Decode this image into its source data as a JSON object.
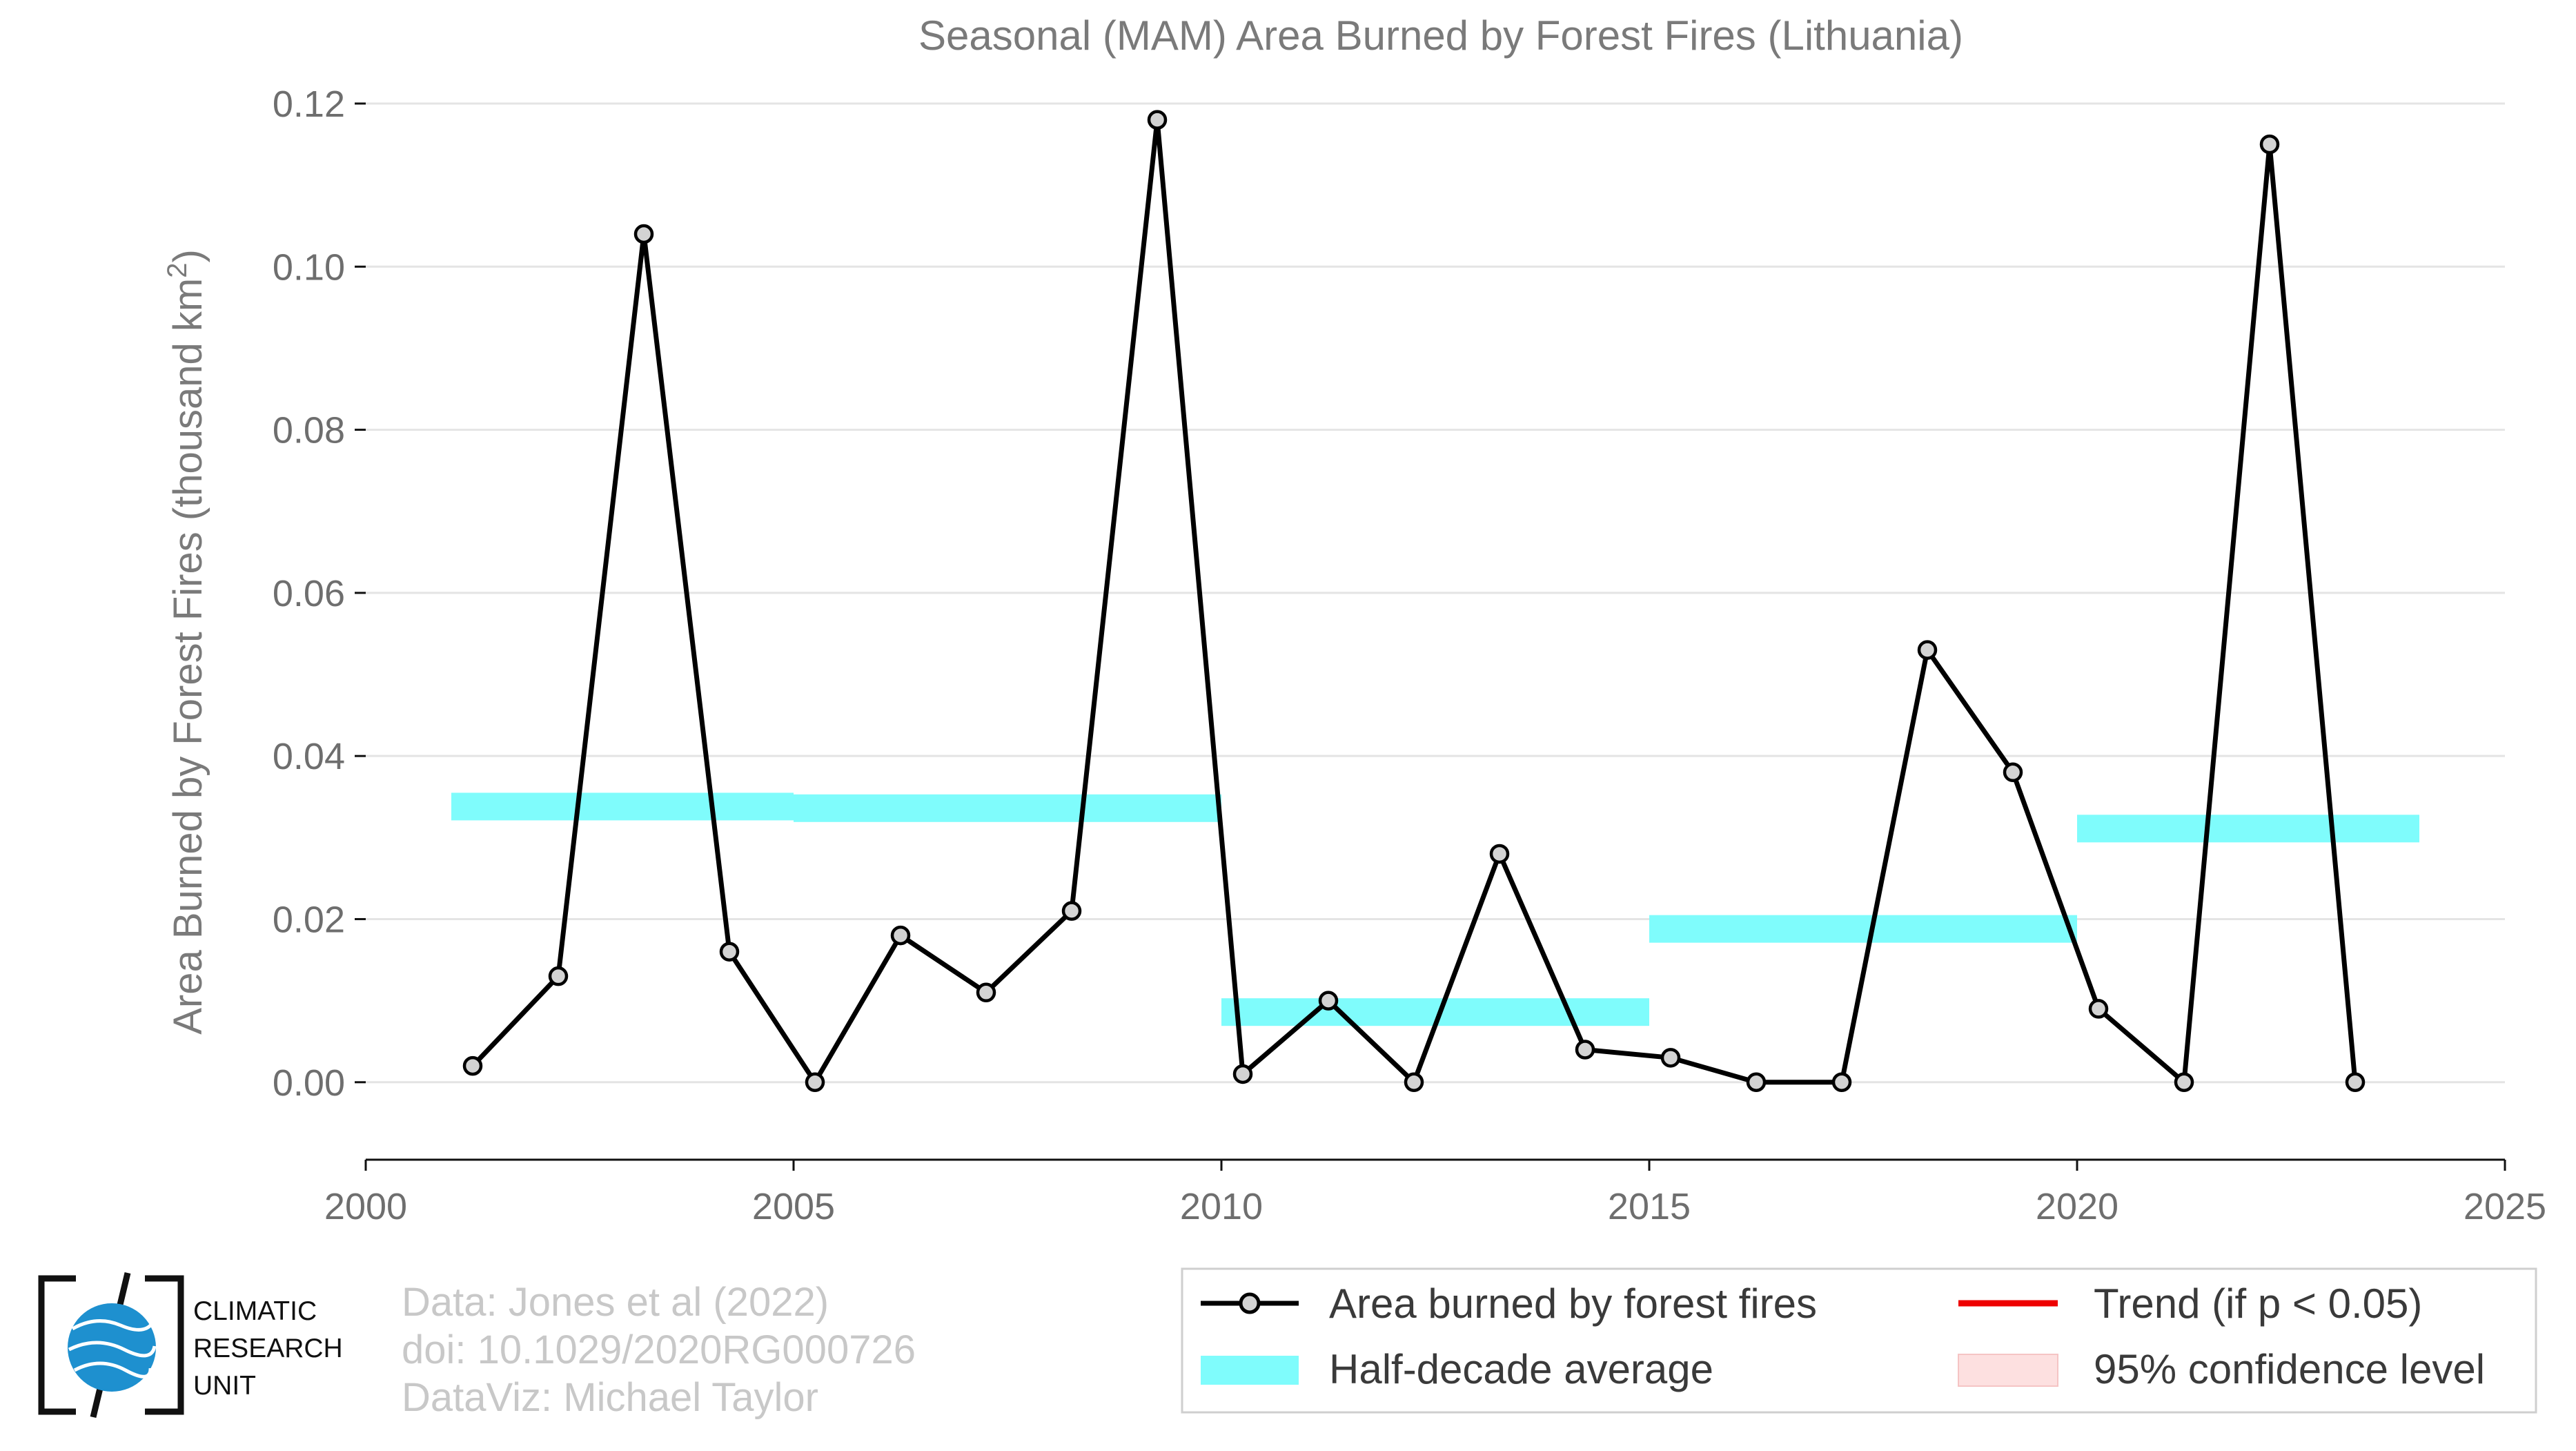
{
  "chart_data": {
    "type": "line",
    "title": "Seasonal (MAM) Area Burned by Forest Fires (Lithuania)",
    "ylabel_main": "Area Burned by Forest Fires (thousand km",
    "ylabel_sup": "2",
    "ylabel_close": ")",
    "xlim": [
      2000,
      2025
    ],
    "ylim": [
      -0.0095,
      0.12
    ],
    "x_ticks": [
      2000,
      2005,
      2010,
      2015,
      2020,
      2025
    ],
    "x_tick_labels": [
      "2000",
      "2005",
      "2010",
      "2015",
      "2020",
      "2025"
    ],
    "y_ticks": [
      0.0,
      0.02,
      0.04,
      0.06,
      0.08,
      0.1,
      0.12
    ],
    "y_tick_labels": [
      "0.00",
      "0.02",
      "0.04",
      "0.06",
      "0.08",
      "0.10",
      "0.12"
    ],
    "grid": true,
    "series": [
      {
        "name": "Area burned by forest fires",
        "color": "#000000",
        "marker_fill": "#d3d3d3",
        "x": [
          2001.25,
          2002.25,
          2003.25,
          2004.25,
          2005.25,
          2006.25,
          2007.25,
          2008.25,
          2009.25,
          2010.25,
          2011.25,
          2012.25,
          2013.25,
          2014.25,
          2015.25,
          2016.25,
          2017.25,
          2018.25,
          2019.25,
          2020.25,
          2021.25,
          2022.25,
          2023.25
        ],
        "y": [
          0.002,
          0.013,
          0.104,
          0.016,
          0.0,
          0.018,
          0.011,
          0.021,
          0.118,
          0.001,
          0.01,
          0.0,
          0.028,
          0.004,
          0.003,
          0.0,
          0.0,
          0.053,
          0.038,
          0.009,
          0.0,
          0.115,
          0.0
        ]
      }
    ],
    "half_decade_average": {
      "name": "Half-decade average",
      "color": "#7ffcfc",
      "segments": [
        {
          "x0": 2001,
          "x1": 2005,
          "y": 0.0338
        },
        {
          "x0": 2005,
          "x1": 2010,
          "y": 0.0336
        },
        {
          "x0": 2010,
          "x1": 2015,
          "y": 0.0086
        },
        {
          "x0": 2015,
          "x1": 2020,
          "y": 0.0188
        },
        {
          "x0": 2020,
          "x1": 2024,
          "y": 0.0311
        }
      ]
    },
    "legend": {
      "placement": "bottom-right",
      "items": [
        {
          "label": "Area burned by forest fires",
          "kind": "line-marker",
          "color": "#000000"
        },
        {
          "label": "Trend (if p < 0.05)",
          "kind": "line",
          "color": "#ee0000"
        },
        {
          "label": "Half-decade average",
          "kind": "patch",
          "color": "#7ffcfc"
        },
        {
          "label": "95% confidence level",
          "kind": "patch",
          "color": "#fde0e0"
        }
      ]
    }
  },
  "credits": {
    "line1": "Data: Jones et al (2022)",
    "line2": "doi: 10.1029/2020RG000726",
    "line3": "DataViz: Michael Taylor"
  },
  "logo": {
    "line1": "CLIMATIC",
    "line2": "RESEARCH",
    "line3": "UNIT"
  }
}
